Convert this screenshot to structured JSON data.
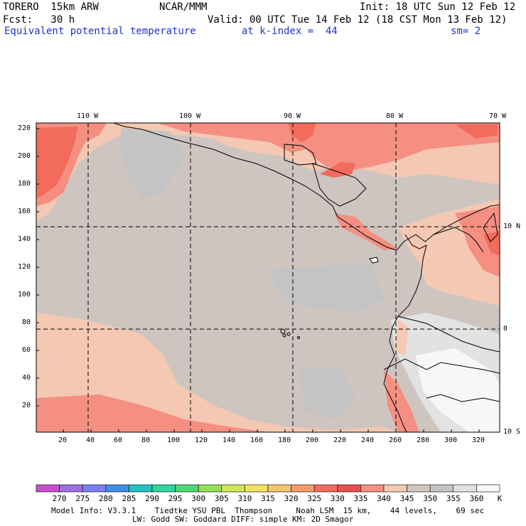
{
  "header": {
    "model": "TORERO  15km ARW",
    "center": "NCAR/MMM",
    "init": "Init: 18 UTC Sun 12 Feb 12",
    "fcst": "Fcst:   30 h",
    "valid": "Valid: 00 UTC Tue 14 Feb 12 (18 CST Mon 13 Feb 12)",
    "field": "Equivalent potential temperature",
    "level": "at k-index =  44",
    "smooth": "sm= 2"
  },
  "map": {
    "lon_labels": [
      "110 W",
      "100 W",
      "90 W",
      "80 W",
      "70 W"
    ],
    "lat_labels": [
      "10 N",
      "0",
      "10 S"
    ],
    "y_ticks": [
      "220",
      "200",
      "180",
      "160",
      "140",
      "120",
      "100",
      "80",
      "60",
      "40",
      "20"
    ],
    "x_ticks": [
      "20",
      "40",
      "60",
      "80",
      "100",
      "120",
      "140",
      "160",
      "180",
      "200",
      "220",
      "240",
      "260",
      "280",
      "300",
      "320"
    ]
  },
  "colorbar": {
    "labels": [
      "270",
      "275",
      "280",
      "285",
      "290",
      "295",
      "300",
      "305",
      "310",
      "315",
      "320",
      "325",
      "330",
      "335",
      "340",
      "345",
      "350",
      "355",
      "360"
    ],
    "unit": "K",
    "colors": [
      "#c84fd0",
      "#9e6ee0",
      "#7b7ff2",
      "#3f8fe8",
      "#25c0c0",
      "#2ed79a",
      "#4ed873",
      "#93e058",
      "#cde65a",
      "#f3e35e",
      "#f6c56a",
      "#f79a6b",
      "#f26b5b",
      "#ea4e4e",
      "#f48f82",
      "#f4c8b2",
      "#cec5c0",
      "#c4c4c4",
      "#e2e2e2",
      "#f7f7f7"
    ]
  },
  "model_info": {
    "line1": "Model Info: V3.3.1    Tiedtke YSU PBL  Thompson     Noah LSM  15 km,    44 levels,    69 sec",
    "line2": "LW: Godd SW: Goddard DIFF: simple KM: 2D Smagor"
  }
}
